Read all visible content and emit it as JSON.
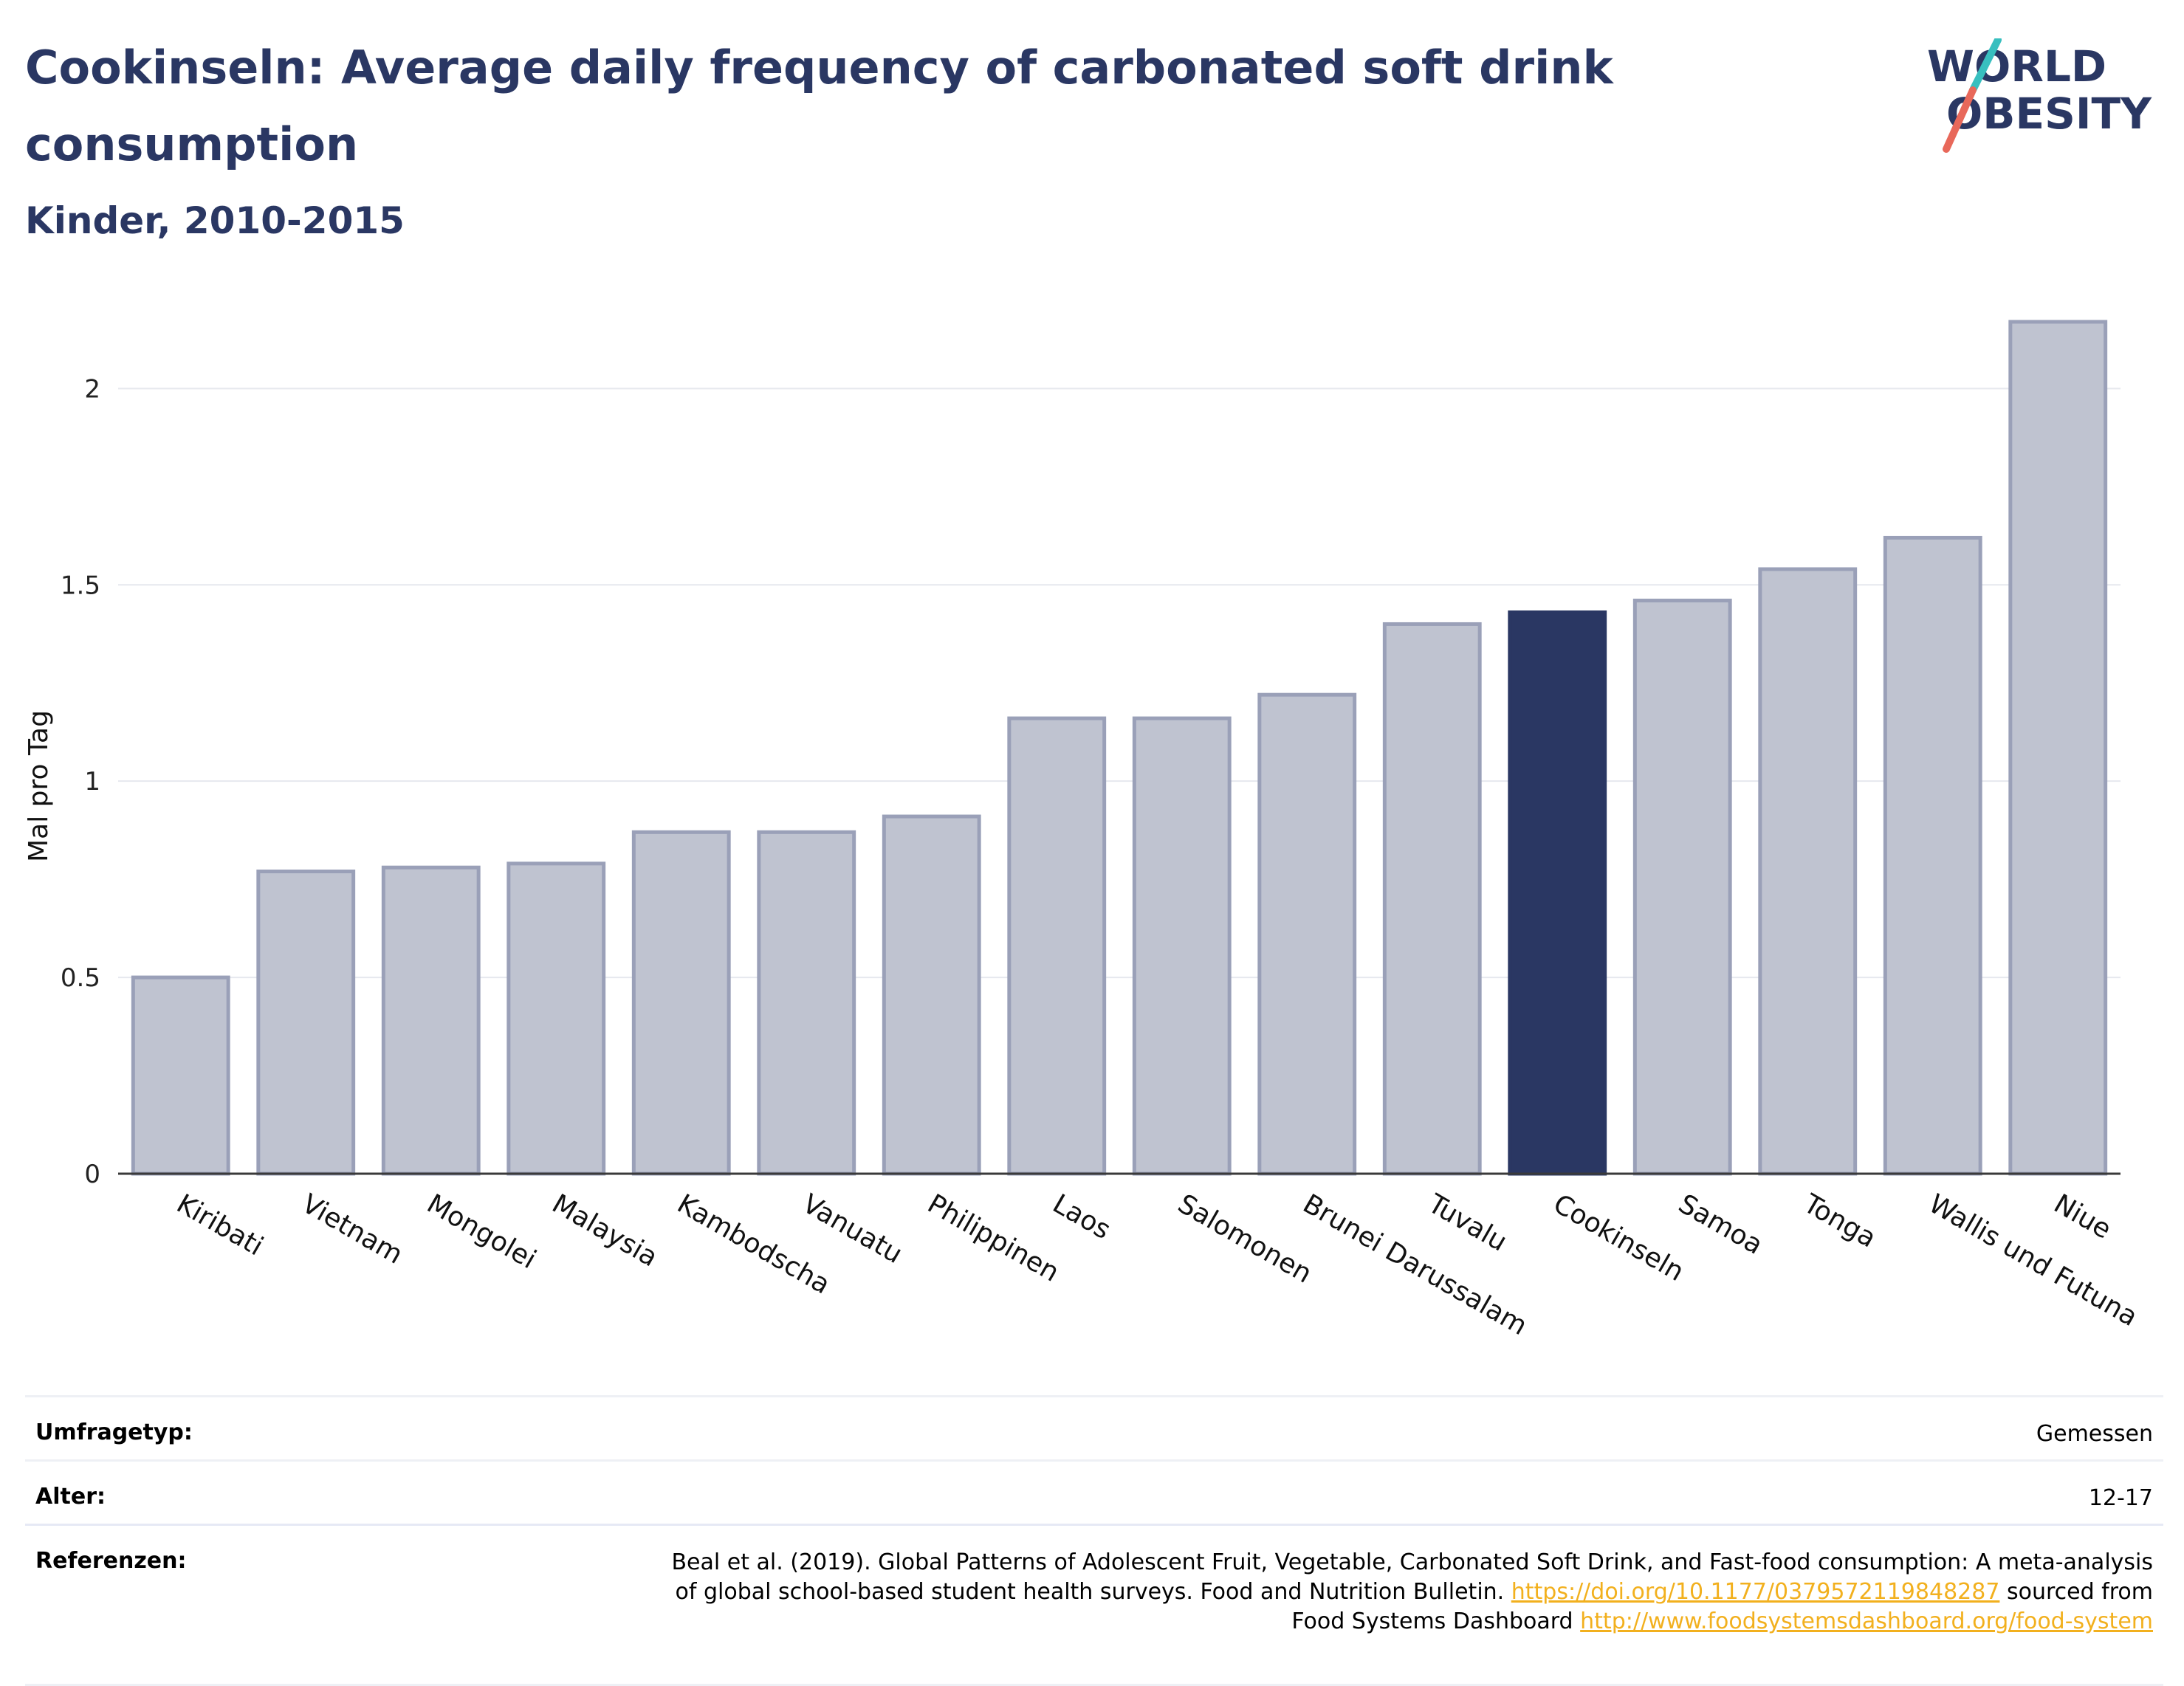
{
  "header": {
    "title": "Cookinseln: Average daily frequency of carbonated soft drink consumption",
    "subtitle": "Kinder, 2010-2015"
  },
  "logo": {
    "line1": "WORLD",
    "line2": "OBESITY",
    "accent_teal": "#38bfbf",
    "accent_red": "#e8685a"
  },
  "colors": {
    "bar": "#bfc3d0",
    "bar_border": "#9aa0b8",
    "highlight": "#2a3763",
    "title": "#2a3763",
    "link": "#f2b01e"
  },
  "chart_data": {
    "type": "bar",
    "ylabel": "Mal pro Tag",
    "ylim": [
      0,
      2.2
    ],
    "yticks": [
      0,
      0.5,
      1,
      1.5,
      2
    ],
    "ytick_labels": [
      "0",
      "0.5",
      "1",
      "1.5",
      "2"
    ],
    "grid": true,
    "categories": [
      "Kiribati",
      "Vietnam",
      "Mongolei",
      "Malaysia",
      "Kambodscha",
      "Vanuatu",
      "Philippinen",
      "Laos",
      "Salomonen",
      "Brunei Darussalam",
      "Tuvalu",
      "Cookinseln",
      "Samoa",
      "Tonga",
      "Wallis und Futuna",
      "Niue"
    ],
    "values": [
      0.5,
      0.77,
      0.78,
      0.79,
      0.87,
      0.87,
      0.91,
      1.16,
      1.16,
      1.22,
      1.4,
      1.43,
      1.46,
      1.54,
      1.62,
      2.17
    ],
    "highlight": "Cookinseln"
  },
  "meta": {
    "survey_label": "Umfragetyp:",
    "survey_value": "Gemessen",
    "age_label": "Alter:",
    "age_value": "12-17",
    "ref_label": "Referenzen:",
    "ref_text_1": "Beal et al. (2019). Global Patterns of Adolescent Fruit, Vegetable, Carbonated Soft Drink, and Fast-food consumption: A meta-analysis",
    "ref_text_2": "of global school-based student health surveys. Food and Nutrition Bulletin.",
    "ref_link_1": "https://doi.org/10.1177/0379572119848287",
    "ref_text_3": "sourced from",
    "ref_text_4": "Food Systems Dashboard",
    "ref_link_2": "http://www.foodsystemsdashboard.org/food-system"
  }
}
